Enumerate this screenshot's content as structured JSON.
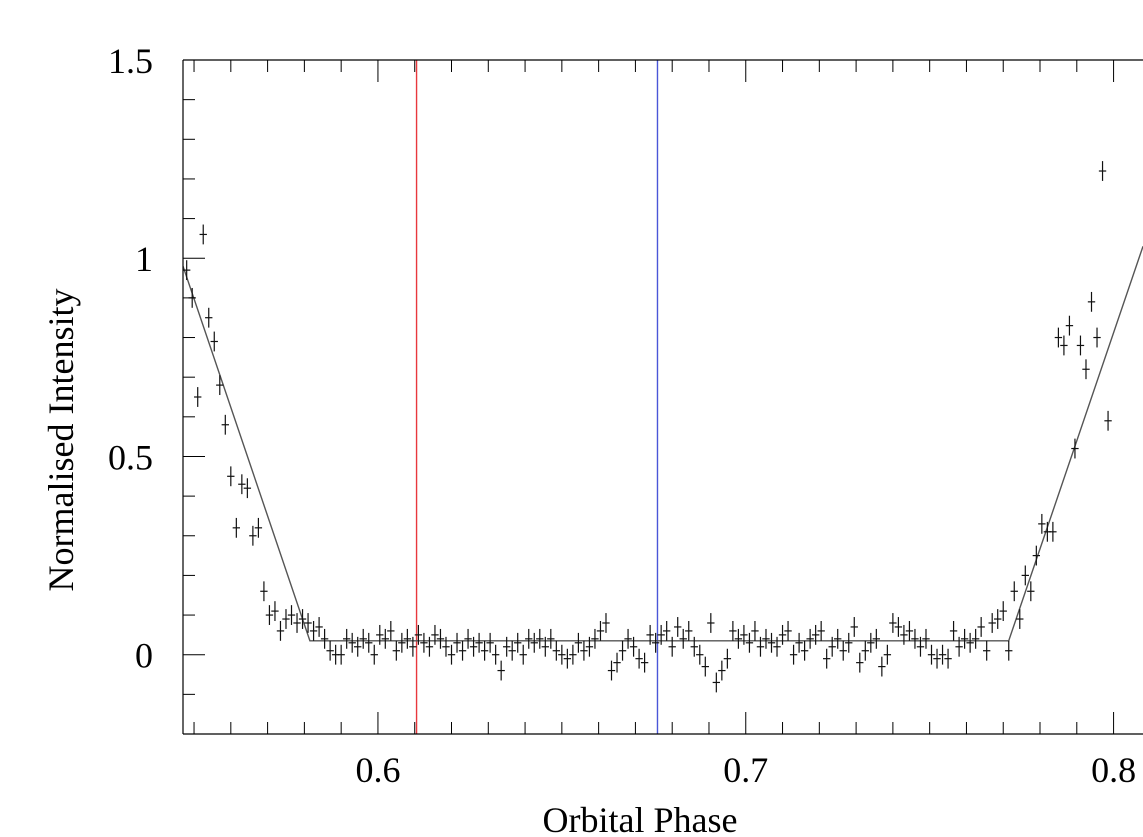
{
  "chart_data": {
    "type": "scatter",
    "xlabel": "Orbital Phase",
    "ylabel": "Normalised Intensity",
    "xlim": [
      0.547,
      0.808
    ],
    "ylim": [
      -0.2,
      1.5
    ],
    "xticks": [
      {
        "value": 0.6,
        "label": "0.6"
      },
      {
        "value": 0.7,
        "label": "0.7"
      },
      {
        "value": 0.8,
        "label": "0.8"
      }
    ],
    "yticks": [
      {
        "value": 0,
        "label": "0"
      },
      {
        "value": 0.5,
        "label": "0.5"
      },
      {
        "value": 1,
        "label": "1"
      },
      {
        "value": 1.5,
        "label": "1.5"
      }
    ],
    "grid": false,
    "vertical_lines": [
      {
        "x": 0.6105,
        "color": "#e8383d"
      },
      {
        "x": 0.676,
        "color": "#4a56d8"
      }
    ],
    "model": {
      "color": "#555555",
      "points": [
        {
          "x": 0.547,
          "y": 0.98
        },
        {
          "x": 0.5815,
          "y": 0.035
        },
        {
          "x": 0.7715,
          "y": 0.035
        },
        {
          "x": 0.808,
          "y": 1.03
        }
      ]
    },
    "data_points": {
      "x_half_width": 0.001,
      "y_error": 0.025,
      "points": [
        {
          "x": 0.548,
          "y": 0.97
        },
        {
          "x": 0.5495,
          "y": 0.9
        },
        {
          "x": 0.551,
          "y": 0.65
        },
        {
          "x": 0.5525,
          "y": 1.06
        },
        {
          "x": 0.554,
          "y": 0.85
        },
        {
          "x": 0.5555,
          "y": 0.79
        },
        {
          "x": 0.557,
          "y": 0.68
        },
        {
          "x": 0.5585,
          "y": 0.58
        },
        {
          "x": 0.56,
          "y": 0.45
        },
        {
          "x": 0.5615,
          "y": 0.32
        },
        {
          "x": 0.563,
          "y": 0.43
        },
        {
          "x": 0.5645,
          "y": 0.42
        },
        {
          "x": 0.566,
          "y": 0.3
        },
        {
          "x": 0.5675,
          "y": 0.32
        },
        {
          "x": 0.569,
          "y": 0.16
        },
        {
          "x": 0.5705,
          "y": 0.1
        },
        {
          "x": 0.572,
          "y": 0.11
        },
        {
          "x": 0.5735,
          "y": 0.06
        },
        {
          "x": 0.575,
          "y": 0.09
        },
        {
          "x": 0.5765,
          "y": 0.1
        },
        {
          "x": 0.578,
          "y": 0.08
        },
        {
          "x": 0.5795,
          "y": 0.09
        },
        {
          "x": 0.581,
          "y": 0.08
        },
        {
          "x": 0.5825,
          "y": 0.06
        },
        {
          "x": 0.584,
          "y": 0.07
        },
        {
          "x": 0.5855,
          "y": 0.04
        },
        {
          "x": 0.587,
          "y": 0.01
        },
        {
          "x": 0.5885,
          "y": 0.0
        },
        {
          "x": 0.59,
          "y": 0.0
        },
        {
          "x": 0.5915,
          "y": 0.04
        },
        {
          "x": 0.593,
          "y": 0.03
        },
        {
          "x": 0.5945,
          "y": 0.02
        },
        {
          "x": 0.596,
          "y": 0.04
        },
        {
          "x": 0.5975,
          "y": 0.03
        },
        {
          "x": 0.599,
          "y": 0.0
        },
        {
          "x": 0.6005,
          "y": 0.05
        },
        {
          "x": 0.602,
          "y": 0.04
        },
        {
          "x": 0.6035,
          "y": 0.06
        },
        {
          "x": 0.605,
          "y": 0.01
        },
        {
          "x": 0.6065,
          "y": 0.03
        },
        {
          "x": 0.608,
          "y": 0.04
        },
        {
          "x": 0.6095,
          "y": 0.02
        },
        {
          "x": 0.611,
          "y": 0.05
        },
        {
          "x": 0.6125,
          "y": 0.03
        },
        {
          "x": 0.614,
          "y": 0.02
        },
        {
          "x": 0.6155,
          "y": 0.05
        },
        {
          "x": 0.617,
          "y": 0.04
        },
        {
          "x": 0.6185,
          "y": 0.02
        },
        {
          "x": 0.62,
          "y": 0.0
        },
        {
          "x": 0.6215,
          "y": 0.03
        },
        {
          "x": 0.623,
          "y": 0.01
        },
        {
          "x": 0.6245,
          "y": 0.04
        },
        {
          "x": 0.626,
          "y": 0.02
        },
        {
          "x": 0.6275,
          "y": 0.03
        },
        {
          "x": 0.629,
          "y": 0.01
        },
        {
          "x": 0.6305,
          "y": 0.03
        },
        {
          "x": 0.632,
          "y": 0.0
        },
        {
          "x": 0.6335,
          "y": -0.04
        },
        {
          "x": 0.635,
          "y": 0.02
        },
        {
          "x": 0.6365,
          "y": 0.01
        },
        {
          "x": 0.638,
          "y": 0.03
        },
        {
          "x": 0.6395,
          "y": 0.0
        },
        {
          "x": 0.641,
          "y": 0.04
        },
        {
          "x": 0.6425,
          "y": 0.03
        },
        {
          "x": 0.644,
          "y": 0.04
        },
        {
          "x": 0.6455,
          "y": 0.02
        },
        {
          "x": 0.647,
          "y": 0.04
        },
        {
          "x": 0.6485,
          "y": 0.01
        },
        {
          "x": 0.65,
          "y": 0.0
        },
        {
          "x": 0.6515,
          "y": -0.01
        },
        {
          "x": 0.653,
          "y": 0.0
        },
        {
          "x": 0.6545,
          "y": 0.03
        },
        {
          "x": 0.656,
          "y": 0.01
        },
        {
          "x": 0.6575,
          "y": 0.02
        },
        {
          "x": 0.659,
          "y": 0.04
        },
        {
          "x": 0.6605,
          "y": 0.06
        },
        {
          "x": 0.662,
          "y": 0.08
        },
        {
          "x": 0.6635,
          "y": -0.04
        },
        {
          "x": 0.665,
          "y": -0.02
        },
        {
          "x": 0.6665,
          "y": 0.01
        },
        {
          "x": 0.668,
          "y": 0.04
        },
        {
          "x": 0.6695,
          "y": 0.02
        },
        {
          "x": 0.671,
          "y": -0.01
        },
        {
          "x": 0.6725,
          "y": -0.02
        },
        {
          "x": 0.674,
          "y": 0.05
        },
        {
          "x": 0.6755,
          "y": 0.03
        },
        {
          "x": 0.677,
          "y": 0.05
        },
        {
          "x": 0.6785,
          "y": 0.06
        },
        {
          "x": 0.68,
          "y": 0.02
        },
        {
          "x": 0.6815,
          "y": 0.07
        },
        {
          "x": 0.683,
          "y": 0.04
        },
        {
          "x": 0.6845,
          "y": 0.06
        },
        {
          "x": 0.686,
          "y": 0.02
        },
        {
          "x": 0.6875,
          "y": 0.0
        },
        {
          "x": 0.689,
          "y": -0.03
        },
        {
          "x": 0.6905,
          "y": 0.08
        },
        {
          "x": 0.692,
          "y": -0.07
        },
        {
          "x": 0.6935,
          "y": -0.04
        },
        {
          "x": 0.695,
          "y": -0.01
        },
        {
          "x": 0.6965,
          "y": 0.06
        },
        {
          "x": 0.698,
          "y": 0.04
        },
        {
          "x": 0.6995,
          "y": 0.05
        },
        {
          "x": 0.701,
          "y": 0.03
        },
        {
          "x": 0.7025,
          "y": 0.06
        },
        {
          "x": 0.704,
          "y": 0.02
        },
        {
          "x": 0.7055,
          "y": 0.04
        },
        {
          "x": 0.707,
          "y": 0.03
        },
        {
          "x": 0.7085,
          "y": 0.02
        },
        {
          "x": 0.71,
          "y": 0.05
        },
        {
          "x": 0.7115,
          "y": 0.06
        },
        {
          "x": 0.713,
          "y": 0.0
        },
        {
          "x": 0.7145,
          "y": 0.03
        },
        {
          "x": 0.716,
          "y": 0.01
        },
        {
          "x": 0.7175,
          "y": 0.04
        },
        {
          "x": 0.719,
          "y": 0.05
        },
        {
          "x": 0.7205,
          "y": 0.06
        },
        {
          "x": 0.722,
          "y": -0.01
        },
        {
          "x": 0.7235,
          "y": 0.02
        },
        {
          "x": 0.725,
          "y": 0.04
        },
        {
          "x": 0.7265,
          "y": 0.01
        },
        {
          "x": 0.728,
          "y": 0.03
        },
        {
          "x": 0.7295,
          "y": 0.07
        },
        {
          "x": 0.731,
          "y": -0.02
        },
        {
          "x": 0.7325,
          "y": 0.01
        },
        {
          "x": 0.734,
          "y": 0.03
        },
        {
          "x": 0.7355,
          "y": 0.04
        },
        {
          "x": 0.737,
          "y": -0.03
        },
        {
          "x": 0.7385,
          "y": 0.0
        },
        {
          "x": 0.74,
          "y": 0.08
        },
        {
          "x": 0.7415,
          "y": 0.07
        },
        {
          "x": 0.743,
          "y": 0.05
        },
        {
          "x": 0.7445,
          "y": 0.06
        },
        {
          "x": 0.746,
          "y": 0.04
        },
        {
          "x": 0.7475,
          "y": 0.02
        },
        {
          "x": 0.749,
          "y": 0.04
        },
        {
          "x": 0.7505,
          "y": 0.0
        },
        {
          "x": 0.752,
          "y": -0.01
        },
        {
          "x": 0.7535,
          "y": 0.0
        },
        {
          "x": 0.755,
          "y": -0.01
        },
        {
          "x": 0.7565,
          "y": 0.06
        },
        {
          "x": 0.758,
          "y": 0.02
        },
        {
          "x": 0.7595,
          "y": 0.04
        },
        {
          "x": 0.761,
          "y": 0.03
        },
        {
          "x": 0.7625,
          "y": 0.04
        },
        {
          "x": 0.764,
          "y": 0.07
        },
        {
          "x": 0.7655,
          "y": 0.01
        },
        {
          "x": 0.767,
          "y": 0.08
        },
        {
          "x": 0.7685,
          "y": 0.09
        },
        {
          "x": 0.77,
          "y": 0.11
        },
        {
          "x": 0.7715,
          "y": 0.01
        },
        {
          "x": 0.773,
          "y": 0.16
        },
        {
          "x": 0.7745,
          "y": 0.09
        },
        {
          "x": 0.776,
          "y": 0.2
        },
        {
          "x": 0.7775,
          "y": 0.16
        },
        {
          "x": 0.779,
          "y": 0.25
        },
        {
          "x": 0.7805,
          "y": 0.33
        },
        {
          "x": 0.782,
          "y": 0.31
        },
        {
          "x": 0.7835,
          "y": 0.31
        },
        {
          "x": 0.785,
          "y": 0.8
        },
        {
          "x": 0.7865,
          "y": 0.78
        },
        {
          "x": 0.788,
          "y": 0.83
        },
        {
          "x": 0.7895,
          "y": 0.52
        },
        {
          "x": 0.791,
          "y": 0.78
        },
        {
          "x": 0.7925,
          "y": 0.72
        },
        {
          "x": 0.794,
          "y": 0.89
        },
        {
          "x": 0.7955,
          "y": 0.8
        },
        {
          "x": 0.797,
          "y": 1.22
        },
        {
          "x": 0.7985,
          "y": 0.59
        }
      ]
    }
  }
}
